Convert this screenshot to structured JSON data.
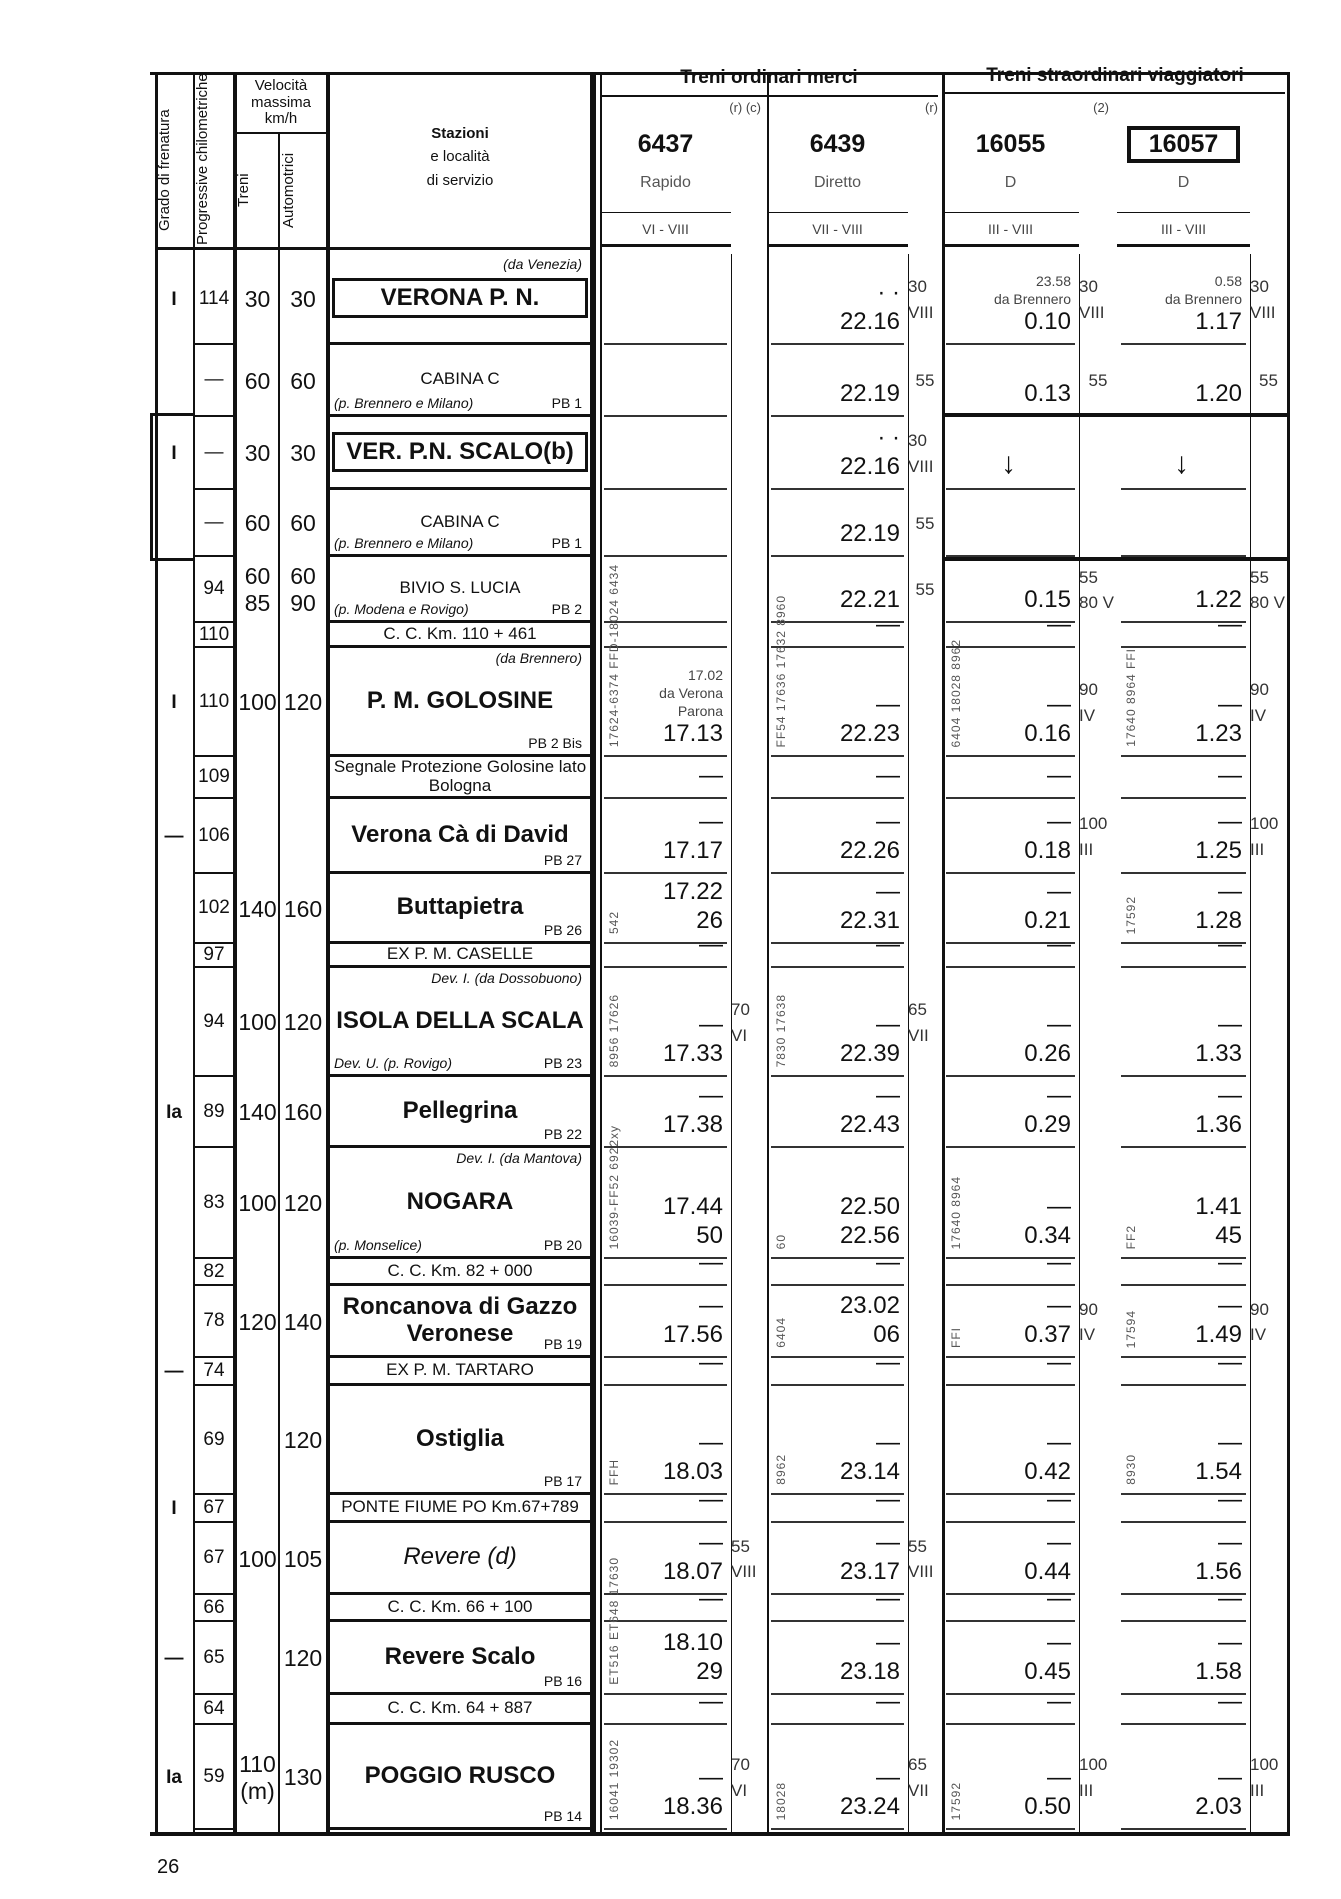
{
  "header": {
    "grado": "Grado di frenatura",
    "progressive": "Progressive chilometriche",
    "velocita": "Velocità massima km/h",
    "treni": "Treni",
    "automotrici": "Automotrici",
    "stazioni_1": "Stazioni",
    "stazioni_2": "e località",
    "stazioni_3": "di servizio",
    "group_merci": "Treni ordinari merci",
    "group_viaggiatori": "Treni straordinari viaggiatori",
    "trains": [
      {
        "number": "6437",
        "notes": "(r) (c)",
        "type": "Rapido",
        "classes": "VI - VIII"
      },
      {
        "number": "6439",
        "notes": "(r)",
        "type": "Diretto",
        "classes": "VII - VIII"
      },
      {
        "number": "16055",
        "notes": "(2)",
        "type": "D",
        "classes": "III - VIII"
      },
      {
        "number": "16057",
        "notes": "",
        "type": "D",
        "classes": "III - VIII",
        "boxed": true
      }
    ]
  },
  "rows": [
    {
      "grado": "I",
      "km": "114",
      "vt": "30",
      "va": "30",
      "name": "VERONA P. N.",
      "style": "boxed",
      "top": "(da Venezia)",
      "sub": "",
      "pb": "",
      "codes": [
        "",
        "",
        "",
        ""
      ],
      "times": [
        [],
        [
          "· ·",
          "22.16"
        ],
        [
          "23.58",
          "da Brennero",
          "0.10"
        ],
        [
          "0.58",
          "da Brennero",
          "1.17"
        ]
      ],
      "speeds": [
        "",
        "30 VIII",
        "30 VIII",
        "30 VIII"
      ]
    },
    {
      "grado": "",
      "km": "—",
      "vt": "60",
      "va": "60",
      "name": "CABINA C",
      "style": "small",
      "top": "",
      "sub": "(p. Brennero e Milano)",
      "pb": "PB 1",
      "codes": [
        "",
        "",
        "",
        ""
      ],
      "times": [
        [],
        [
          "22.19"
        ],
        [
          "0.13"
        ],
        [
          "1.20"
        ]
      ],
      "speeds": [
        "",
        "55",
        "55",
        "55"
      ]
    },
    {
      "grado": "I",
      "km": "—",
      "vt": "30",
      "va": "30",
      "name": "VER. P.N. SCALO(b)",
      "style": "boxed",
      "top": "",
      "sub": "",
      "pb": "",
      "codes": [
        "",
        "",
        "",
        ""
      ],
      "times": [
        [],
        [
          "· ·",
          "22.16"
        ],
        [
          "↓"
        ],
        [
          "↓"
        ]
      ],
      "speeds": [
        "",
        "30 VIII",
        "",
        ""
      ]
    },
    {
      "grado": "",
      "km": "—",
      "vt": "60",
      "va": "60",
      "name": "CABINA C",
      "style": "small",
      "top": "",
      "sub": "(p. Brennero e Milano)",
      "pb": "PB 1",
      "codes": [
        "",
        "",
        "",
        ""
      ],
      "times": [
        [],
        [
          "22.19"
        ],
        [],
        []
      ],
      "speeds": [
        "",
        "55",
        "",
        ""
      ]
    },
    {
      "grado": "",
      "km": "94",
      "vt": "60 85",
      "va": "60 90",
      "name": "BIVIO S. LUCIA",
      "style": "small",
      "top": "",
      "sub": "(p. Modena e Rovigo)",
      "pb": "PB 2",
      "codes": [
        "",
        "",
        "",
        ""
      ],
      "times": [
        [],
        [
          "22.21"
        ],
        [
          "0.15"
        ],
        [
          "1.22"
        ]
      ],
      "speeds": [
        "",
        "55",
        "55 80 V",
        "55 80 V"
      ]
    },
    {
      "grado": "",
      "km": "110",
      "vt": "",
      "va": "",
      "name": "C. C. Km. 110 + 461",
      "style": "small",
      "top": "",
      "sub": "",
      "pb": "",
      "codes": [
        "",
        "",
        "",
        ""
      ],
      "times": [
        [],
        [
          "—"
        ],
        [
          "—"
        ],
        [
          "—"
        ]
      ],
      "speeds": [
        "",
        "",
        "",
        ""
      ]
    },
    {
      "grado": "I",
      "km": "110",
      "vt": "100",
      "va": "120",
      "name": "P. M. GOLOSINE",
      "style": "",
      "top": "(da Brennero)",
      "sub": "",
      "pb": "PB 2 Bis",
      "codes": [
        "17624-6374 FFD-18024 6434",
        "FF54 17636 17632 8960",
        "6404 18028 8962",
        "17640 8964 FFI"
      ],
      "times": [
        [
          "17.02",
          "da Verona",
          "Parona",
          "17.13"
        ],
        [
          "—",
          "22.23"
        ],
        [
          "—",
          "0.16"
        ],
        [
          "—",
          "1.23"
        ]
      ],
      "speeds": [
        "",
        "",
        "90 IV",
        "90 IV"
      ]
    },
    {
      "grado": "",
      "km": "109",
      "vt": "",
      "va": "",
      "name": "Segnale Protezione Golosine lato Bologna",
      "style": "small",
      "top": "",
      "sub": "",
      "pb": "",
      "codes": [
        "",
        "",
        "",
        ""
      ],
      "times": [
        [
          "—"
        ],
        [
          "—"
        ],
        [
          "—"
        ],
        [
          "—"
        ]
      ],
      "speeds": [
        "",
        "",
        "",
        ""
      ]
    },
    {
      "grado": "—",
      "km": "106",
      "vt": "",
      "va": "",
      "name": "Verona Cà di David",
      "style": "",
      "top": "",
      "sub": "",
      "pb": "PB 27",
      "codes": [
        "",
        "",
        "",
        ""
      ],
      "times": [
        [
          "—",
          "17.17"
        ],
        [
          "—",
          "22.26"
        ],
        [
          "—",
          "0.18"
        ],
        [
          "—",
          "1.25"
        ]
      ],
      "speeds": [
        "",
        "",
        "100 III",
        "100 III"
      ]
    },
    {
      "grado": "",
      "km": "102",
      "vt": "140",
      "va": "160",
      "name": "Buttapietra",
      "style": "",
      "top": "",
      "sub": "",
      "pb": "PB 26",
      "codes": [
        "542",
        "",
        "",
        "17592"
      ],
      "times": [
        [
          "17.22",
          "26"
        ],
        [
          "—",
          "22.31"
        ],
        [
          "—",
          "0.21"
        ],
        [
          "—",
          "1.28"
        ]
      ],
      "speeds": [
        "",
        "",
        "",
        ""
      ]
    },
    {
      "grado": "",
      "km": "97",
      "vt": "",
      "va": "",
      "name": "EX P. M. CASELLE",
      "style": "small",
      "top": "",
      "sub": "",
      "pb": "",
      "codes": [
        "",
        "",
        "",
        ""
      ],
      "times": [
        [
          "—"
        ],
        [
          "—"
        ],
        [
          "—"
        ],
        [
          "—"
        ]
      ],
      "speeds": [
        "",
        "",
        "",
        ""
      ]
    },
    {
      "grado": "",
      "km": "94",
      "vt": "100",
      "va": "120",
      "name": "ISOLA DELLA SCALA",
      "style": "",
      "top": "Dev. I.   (da Dossobuono)",
      "sub": "Dev. U.  (p. Rovigo)",
      "pb": "PB 23",
      "codes": [
        "8956 17626",
        "7830 17638",
        "",
        ""
      ],
      "times": [
        [
          "—",
          "17.33"
        ],
        [
          "—",
          "22.39"
        ],
        [
          "—",
          "0.26"
        ],
        [
          "—",
          "1.33"
        ]
      ],
      "speeds": [
        "70 VI",
        "65 VII",
        "",
        ""
      ]
    },
    {
      "grado": "Ia",
      "km": "89",
      "vt": "140",
      "va": "160",
      "name": "Pellegrina",
      "style": "",
      "top": "",
      "sub": "",
      "pb": "PB 22",
      "codes": [
        "",
        "",
        "",
        ""
      ],
      "times": [
        [
          "—",
          "17.38"
        ],
        [
          "—",
          "22.43"
        ],
        [
          "—",
          "0.29"
        ],
        [
          "—",
          "1.36"
        ]
      ],
      "speeds": [
        "",
        "",
        "",
        ""
      ]
    },
    {
      "grado": "",
      "km": "83",
      "vt": "100",
      "va": "120",
      "name": "NOGARA",
      "style": "",
      "top": "Dev. I.   (da Mantova)",
      "sub": "(p. Monselice)",
      "pb": "PB 20",
      "codes": [
        "16039-FF52 6922xy",
        "60",
        "17640 8964",
        "FF2"
      ],
      "times": [
        [
          "17.44",
          "50"
        ],
        [
          "22.50",
          "22.56"
        ],
        [
          "—",
          "0.34"
        ],
        [
          "1.41",
          "45"
        ]
      ],
      "speeds": [
        "",
        "",
        "",
        ""
      ]
    },
    {
      "grado": "",
      "km": "82",
      "vt": "",
      "va": "",
      "name": "C. C. Km. 82 + 000",
      "style": "small",
      "top": "",
      "sub": "",
      "pb": "",
      "codes": [
        "",
        "",
        "",
        ""
      ],
      "times": [
        [
          "—"
        ],
        [
          "—"
        ],
        [
          "—"
        ],
        [
          "—"
        ]
      ],
      "speeds": [
        "",
        "",
        "",
        ""
      ]
    },
    {
      "grado": "",
      "km": "78",
      "vt": "120",
      "va": "140",
      "name": "Roncanova di Gazzo Veronese",
      "style": "",
      "top": "",
      "sub": "",
      "pb": "PB 19",
      "codes": [
        "",
        "6404",
        "FFI",
        "17594"
      ],
      "times": [
        [
          "—",
          "17.56"
        ],
        [
          "23.02",
          "06"
        ],
        [
          "—",
          "0.37"
        ],
        [
          "—",
          "1.49"
        ]
      ],
      "speeds": [
        "",
        "",
        "90 IV",
        "90 IV"
      ]
    },
    {
      "grado": "—",
      "km": "74",
      "vt": "",
      "va": "",
      "name": "EX P. M. TARTARO",
      "style": "small",
      "top": "",
      "sub": "",
      "pb": "",
      "codes": [
        "",
        "",
        "",
        ""
      ],
      "times": [
        [
          "—"
        ],
        [
          "—"
        ],
        [
          "—"
        ],
        [
          "—"
        ]
      ],
      "speeds": [
        "",
        "",
        "",
        ""
      ]
    },
    {
      "grado": "",
      "km": "69",
      "vt": "",
      "va": "120",
      "name": "Ostiglia",
      "style": "",
      "top": "",
      "sub": "",
      "pb": "PB 17",
      "codes": [
        "FFH",
        "8962",
        "",
        "8930"
      ],
      "times": [
        [
          "—",
          "18.03"
        ],
        [
          "—",
          "23.14"
        ],
        [
          "—",
          "0.42"
        ],
        [
          "—",
          "1.54"
        ]
      ],
      "speeds": [
        "",
        "",
        "",
        ""
      ]
    },
    {
      "grado": "I",
      "km": "67",
      "vt": "",
      "va": "",
      "name": "PONTE FIUME PO Km.67+789",
      "style": "small",
      "top": "",
      "sub": "",
      "pb": "",
      "codes": [
        "",
        "",
        "",
        ""
      ],
      "times": [
        [
          "—"
        ],
        [
          "—"
        ],
        [
          "—"
        ],
        [
          "—"
        ]
      ],
      "speeds": [
        "",
        "",
        "",
        ""
      ]
    },
    {
      "grado": "",
      "km": "67",
      "vt": "100",
      "va": "105",
      "name": "Revere (d)",
      "style": "italic",
      "top": "",
      "sub": "",
      "pb": "",
      "codes": [
        "",
        "",
        "",
        ""
      ],
      "times": [
        [
          "—",
          "18.07"
        ],
        [
          "—",
          "23.17"
        ],
        [
          "—",
          "0.44"
        ],
        [
          "—",
          "1.56"
        ]
      ],
      "speeds": [
        "55 VIII",
        "55 VIII",
        "",
        ""
      ]
    },
    {
      "grado": "",
      "km": "66",
      "vt": "",
      "va": "",
      "name": "C. C. Km. 66 + 100",
      "style": "small",
      "top": "",
      "sub": "",
      "pb": "",
      "codes": [
        "",
        "",
        "",
        ""
      ],
      "times": [
        [
          "—"
        ],
        [
          "—"
        ],
        [
          "—"
        ],
        [
          "—"
        ]
      ],
      "speeds": [
        "",
        "",
        "",
        ""
      ]
    },
    {
      "grado": "—",
      "km": "65",
      "vt": "",
      "va": "120",
      "name": "Revere Scalo",
      "style": "",
      "top": "",
      "sub": "",
      "pb": "PB 16",
      "codes": [
        "ET516 ET648 17630",
        "",
        "",
        ""
      ],
      "times": [
        [
          "18.10",
          "29"
        ],
        [
          "—",
          "23.18"
        ],
        [
          "—",
          "0.45"
        ],
        [
          "—",
          "1.58"
        ]
      ],
      "speeds": [
        "",
        "",
        "",
        ""
      ]
    },
    {
      "grado": "",
      "km": "64",
      "vt": "",
      "va": "",
      "name": "C. C. Km. 64 + 887",
      "style": "small",
      "top": "",
      "sub": "",
      "pb": "",
      "codes": [
        "",
        "",
        "",
        ""
      ],
      "times": [
        [
          "—"
        ],
        [
          "—"
        ],
        [
          "—"
        ],
        [
          "—"
        ]
      ],
      "speeds": [
        "",
        "",
        "",
        ""
      ]
    },
    {
      "grado": "Ia",
      "km": "59",
      "vt": "110 (m)",
      "va": "130",
      "name": "POGGIO RUSCO",
      "style": "",
      "top": "",
      "sub": "",
      "pb": "PB 14",
      "codes": [
        "16041 19302",
        "18028",
        "17592",
        ""
      ],
      "times": [
        [
          "—",
          "18.36"
        ],
        [
          "—",
          "23.24"
        ],
        [
          "—",
          "0.50"
        ],
        [
          "—",
          "2.03"
        ]
      ],
      "speeds": [
        "70 VI",
        "65 VII",
        "100 III",
        "100 III"
      ]
    }
  ],
  "page_number": "26"
}
